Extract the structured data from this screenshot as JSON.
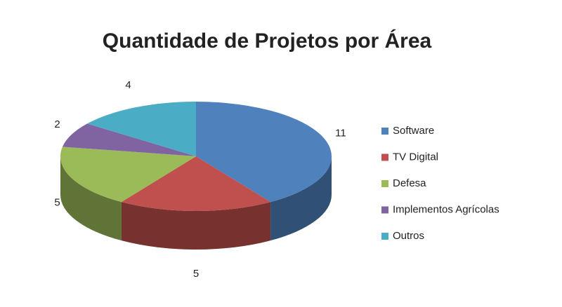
{
  "chart_data": {
    "type": "pie",
    "title": "Quantidade de Projetos por Área",
    "categories": [
      "Software",
      "TV Digital",
      "Defesa",
      "Implementos Agrícolas",
      "Outros"
    ],
    "values": [
      11,
      5,
      5,
      2,
      4
    ],
    "colors": [
      "#4f81bd",
      "#c0504d",
      "#9bbb59",
      "#8064a2",
      "#4bacc6"
    ],
    "legend": "right"
  }
}
